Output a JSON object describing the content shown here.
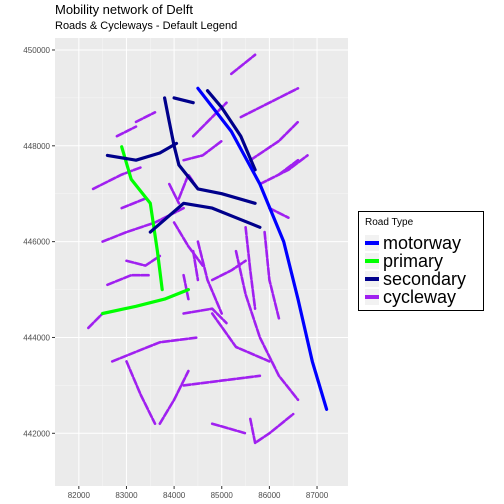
{
  "header": {
    "title": "Mobility network of Delft",
    "subtitle": "Roads & Cycleways - Default Legend"
  },
  "legend": {
    "title": "Road Type",
    "items": [
      {
        "label": "motorway",
        "color": "#0000ff"
      },
      {
        "label": "primary",
        "color": "#00ff00"
      },
      {
        "label": "secondary",
        "color": "#00008b"
      },
      {
        "label": "cycleway",
        "color": "#a020f0"
      }
    ]
  },
  "chart_data": {
    "type": "map",
    "panel_background": "#ebebeb",
    "grid": true,
    "legend_position": "right",
    "xlim": [
      81500,
      87650
    ],
    "ylim": [
      440900,
      450250
    ],
    "x_ticks": [
      82000,
      83000,
      84000,
      85000,
      86000,
      87000
    ],
    "y_ticks": [
      442000,
      444000,
      446000,
      448000,
      450000
    ],
    "x_tick_labels": [
      "82000",
      "83000",
      "84000",
      "85000",
      "86000",
      "87000"
    ],
    "y_tick_labels": [
      "442000",
      "444000",
      "446000",
      "448000",
      "450000"
    ],
    "series": [
      {
        "name": "motorway",
        "color": "#0000ff",
        "lines": [
          [
            [
              84500,
              449200
            ],
            [
              85200,
              448300
            ],
            [
              85800,
              447200
            ],
            [
              86300,
              446000
            ],
            [
              86600,
              444800
            ],
            [
              86900,
              443500
            ],
            [
              87200,
              442500
            ]
          ]
        ]
      },
      {
        "name": "primary",
        "color": "#00ff00",
        "lines": [
          [
            [
              82900,
              447980
            ],
            [
              83100,
              447300
            ],
            [
              83500,
              446800
            ],
            [
              83650,
              445800
            ],
            [
              83750,
              445000
            ]
          ],
          [
            [
              82500,
              444500
            ],
            [
              83200,
              444650
            ],
            [
              83800,
              444800
            ],
            [
              84300,
              445000
            ]
          ]
        ]
      },
      {
        "name": "secondary",
        "color": "#00008b",
        "lines": [
          [
            [
              83800,
              449000
            ],
            [
              83900,
              448500
            ],
            [
              84000,
              448000
            ],
            [
              84100,
              447600
            ],
            [
              84500,
              447100
            ],
            [
              85000,
              447000
            ],
            [
              85700,
              446800
            ]
          ],
          [
            [
              82600,
              447800
            ],
            [
              83200,
              447700
            ],
            [
              83700,
              447850
            ],
            [
              84050,
              448050
            ]
          ],
          [
            [
              83500,
              446200
            ],
            [
              84200,
              446800
            ],
            [
              84800,
              446700
            ],
            [
              85300,
              446500
            ],
            [
              85800,
              446300
            ]
          ],
          [
            [
              84700,
              449150
            ],
            [
              85000,
              448800
            ],
            [
              85400,
              448200
            ],
            [
              85700,
              447500
            ]
          ],
          [
            [
              84000,
              449000
            ],
            [
              84400,
              448900
            ]
          ]
        ]
      },
      {
        "name": "cycleway",
        "color": "#a020f0",
        "lines": [
          [
            [
              82500,
              446000
            ],
            [
              83000,
              446200
            ],
            [
              83600,
              446400
            ],
            [
              84200,
              446700
            ]
          ],
          [
            [
              82300,
              447100
            ],
            [
              82900,
              447400
            ],
            [
              83300,
              447550
            ]
          ],
          [
            [
              82600,
              445100
            ],
            [
              83100,
              445300
            ],
            [
              83500,
              445300
            ]
          ],
          [
            [
              82200,
              444200
            ],
            [
              82500,
              444500
            ]
          ],
          [
            [
              82700,
              443500
            ],
            [
              83200,
              443700
            ],
            [
              83700,
              443900
            ],
            [
              84500,
              444000
            ]
          ],
          [
            [
              83000,
              443500
            ],
            [
              83300,
              442800
            ],
            [
              83600,
              442200
            ]
          ],
          [
            [
              84200,
              443000
            ],
            [
              85000,
              443100
            ],
            [
              85800,
              443200
            ]
          ],
          [
            [
              84800,
              444500
            ],
            [
              85300,
              443800
            ],
            [
              86000,
              443500
            ]
          ],
          [
            [
              84500,
              446000
            ],
            [
              84700,
              445200
            ],
            [
              85000,
              444500
            ]
          ],
          [
            [
              85300,
              445800
            ],
            [
              85500,
              444900
            ],
            [
              85800,
              444000
            ],
            [
              86200,
              443200
            ],
            [
              86600,
              442700
            ]
          ],
          [
            [
              85600,
              442300
            ],
            [
              85700,
              441800
            ],
            [
              86000,
              442000
            ],
            [
              86500,
              442400
            ]
          ],
          [
            [
              85900,
              446200
            ],
            [
              86000,
              445200
            ],
            [
              86200,
              444400
            ]
          ],
          [
            [
              85500,
              446300
            ],
            [
              85600,
              445400
            ],
            [
              85700,
              444600
            ]
          ],
          [
            [
              84800,
              442200
            ],
            [
              85500,
              442000
            ]
          ],
          [
            [
              83700,
              442200
            ],
            [
              84000,
              442700
            ],
            [
              84300,
              443300
            ]
          ],
          [
            [
              85200,
              449500
            ],
            [
              85700,
              449900
            ]
          ],
          [
            [
              85400,
              448600
            ],
            [
              86000,
              448900
            ],
            [
              86600,
              449200
            ]
          ],
          [
            [
              85600,
              447700
            ],
            [
              86200,
              448100
            ],
            [
              86600,
              448500
            ]
          ],
          [
            [
              85800,
              447200
            ],
            [
              86400,
              447500
            ],
            [
              86800,
              447800
            ]
          ],
          [
            [
              84400,
              448200
            ],
            [
              84800,
              448600
            ],
            [
              85100,
              448900
            ]
          ],
          [
            [
              84200,
              447700
            ],
            [
              84600,
              447800
            ],
            [
              85000,
              448100
            ]
          ],
          [
            [
              84000,
              446400
            ],
            [
              84300,
              445900
            ],
            [
              84600,
              445500
            ]
          ],
          [
            [
              83900,
              447200
            ],
            [
              84100,
              446800
            ]
          ],
          [
            [
              84800,
              445200
            ],
            [
              85200,
              445400
            ],
            [
              85500,
              445600
            ]
          ],
          [
            [
              84200,
              444500
            ],
            [
              84800,
              444600
            ],
            [
              85100,
              444300
            ]
          ],
          [
            [
              83000,
              445600
            ],
            [
              83400,
              445500
            ],
            [
              83700,
              445700
            ]
          ],
          [
            [
              82900,
              446700
            ],
            [
              83400,
              446900
            ]
          ],
          [
            [
              82800,
              448200
            ],
            [
              83200,
              448400
            ]
          ],
          [
            [
              83200,
              448500
            ],
            [
              83600,
              448700
            ]
          ],
          [
            [
              84100,
              446900
            ],
            [
              84300,
              447400
            ],
            [
              84500,
              447100
            ]
          ],
          [
            [
              86000,
              446700
            ],
            [
              86400,
              446500
            ]
          ],
          [
            [
              86200,
              447400
            ],
            [
              86600,
              447700
            ]
          ],
          [
            [
              84400,
              445800
            ],
            [
              84500,
              445200
            ]
          ],
          [
            [
              84200,
              445300
            ],
            [
              84300,
              444800
            ]
          ]
        ]
      }
    ]
  }
}
